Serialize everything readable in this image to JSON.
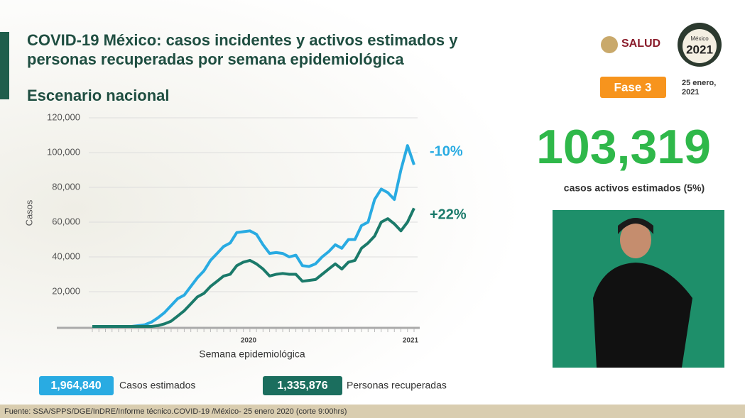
{
  "header": {
    "title_lines": [
      "COVID-19 México: casos incidentes y activos estimados y",
      "personas recuperadas por semana epidemiológica"
    ],
    "subtitle": "Escenario nacional",
    "brand": "SALUD",
    "logo_country": "México",
    "logo_year": "2021",
    "phase": "Fase 3",
    "date_lines": [
      "25 enero,",
      "2021"
    ]
  },
  "highlight": {
    "value": "103,319",
    "caption": "casos activos estimados (5%)"
  },
  "totals": [
    {
      "value": "1,964,840",
      "label": "Casos estimados"
    },
    {
      "value": "1,335,876",
      "label": "Personas recuperadas"
    }
  ],
  "footer": "Fuente: SSA/SPPS/DGE/InDRE/Informe técnico.COVID-19 /México- 25 enero 2020 (corte 9:00hrs)",
  "chart_data": {
    "type": "line",
    "y_label": "Casos",
    "x_label": "Semana epidemiológica",
    "x_year_labels": [
      "2020",
      "2021"
    ],
    "categories": [
      null,
      null,
      null,
      null,
      null,
      null,
      null,
      null,
      null,
      null,
      null,
      null,
      null,
      null,
      null,
      null,
      null,
      null,
      null,
      null,
      null,
      null,
      null,
      null,
      null,
      null,
      null,
      null,
      null,
      null,
      null,
      null,
      null,
      null,
      null,
      null,
      null,
      null,
      null,
      null,
      null,
      null,
      null,
      null,
      null,
      null,
      null,
      null,
      null,
      null
    ],
    "ylim": [
      0,
      120000
    ],
    "yticks": [
      {
        "value": 20000,
        "label": "20,000"
      },
      {
        "value": 40000,
        "label": "40,000"
      },
      {
        "value": 60000,
        "label": "60,000"
      },
      {
        "value": 80000,
        "label": "80,000"
      },
      {
        "value": 100000,
        "label": "100,000"
      },
      {
        "value": 120000,
        "label": "120,000"
      }
    ],
    "grid": true,
    "series": [
      {
        "name": "Casos estimados",
        "color": "#29abe2",
        "end_label": "-10%",
        "values": [
          0,
          0,
          0,
          0,
          0,
          0,
          0,
          500,
          1000,
          2500,
          5000,
          8000,
          12000,
          16000,
          18000,
          23000,
          28000,
          32000,
          38000,
          42000,
          46000,
          48000,
          54000,
          54500,
          55000,
          53000,
          47000,
          42000,
          42500,
          42000,
          40000,
          41000,
          35000,
          34500,
          36000,
          40000,
          43000,
          47000,
          45000,
          50000,
          50000,
          58000,
          60000,
          73000,
          79000,
          77000,
          73000,
          90000,
          104000,
          93000
        ]
      },
      {
        "name": "Personas recuperadas",
        "color": "#1b7a6a",
        "end_label": "+22%",
        "values": [
          0,
          0,
          0,
          0,
          0,
          0,
          0,
          0,
          0,
          0,
          500,
          1500,
          3000,
          6000,
          9000,
          13000,
          17000,
          19000,
          23000,
          26000,
          29000,
          30000,
          35000,
          37000,
          38000,
          36000,
          33000,
          29000,
          30000,
          30500,
          30000,
          30000,
          26000,
          26500,
          27000,
          30000,
          33000,
          36000,
          33000,
          37000,
          38000,
          45000,
          48000,
          52000,
          60000,
          62000,
          59000,
          55000,
          60000,
          68000
        ]
      }
    ]
  }
}
